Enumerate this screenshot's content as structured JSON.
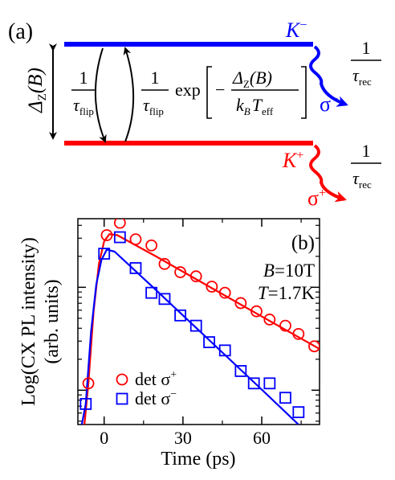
{
  "panel_a": {
    "label": "(a)",
    "upper_level": {
      "label": "K",
      "sup": "−",
      "color": "#0000ff"
    },
    "lower_level": {
      "label": "K",
      "sup": "+",
      "color": "#ff0000"
    },
    "splitting": {
      "main": "Δ",
      "sub": "Z",
      "arg": "(B)"
    },
    "rate_down": {
      "num": "1",
      "den_main": "τ",
      "den_sub": "flip"
    },
    "rate_up": {
      "num": "1",
      "den_main": "τ",
      "den_sub": "flip",
      "exp": "exp",
      "inner_num_main": "Δ",
      "inner_num_sub": "Z",
      "inner_num_arg": "(B)",
      "inner_den_kb": "k",
      "inner_den_kb_sub": "B",
      "inner_den_t": "T",
      "inner_den_t_sub": "eff",
      "minus": "−"
    },
    "upper_emission": {
      "pol": "σ",
      "pol_sup": "−",
      "color": "#0000ff",
      "rate_num": "1",
      "rate_den_main": "τ",
      "rate_den_sub": "rec"
    },
    "lower_emission": {
      "pol": "σ",
      "pol_sup": "+",
      "color": "#ff0000",
      "rate_num": "1",
      "rate_den_main": "τ",
      "rate_den_sub": "rec"
    }
  },
  "chart_data": {
    "type": "scatter",
    "panel_label": "(b)",
    "xlabel": "Time (ps)",
    "ylabel": "Log(CX PL intensity)",
    "ylabel2": "(arb. units)",
    "x_ticks": [
      0,
      30,
      60
    ],
    "xlim": [
      -10,
      82
    ],
    "ylim": [
      0,
      1
    ],
    "log_scale": true,
    "annotations": [
      {
        "main": "B",
        "rest": "=10T"
      },
      {
        "main": "T",
        "rest": "=1.7K"
      }
    ],
    "series": [
      {
        "name": "det σ",
        "name_sup": "+",
        "color": "#ff0000",
        "marker": "circle",
        "points": [
          [
            -6,
            0.2
          ],
          [
            1,
            0.92
          ],
          [
            6,
            0.98
          ],
          [
            12,
            0.9
          ],
          [
            18,
            0.87
          ],
          [
            23,
            0.78
          ],
          [
            29,
            0.74
          ],
          [
            35,
            0.72
          ],
          [
            41,
            0.67
          ],
          [
            46,
            0.64
          ],
          [
            52,
            0.59
          ],
          [
            58,
            0.55
          ],
          [
            63,
            0.51
          ],
          [
            69,
            0.48
          ],
          [
            74,
            0.44
          ],
          [
            80,
            0.38
          ]
        ],
        "fit": [
          [
            -7.5,
            0.0
          ],
          [
            -6,
            0.2
          ],
          [
            -4,
            0.55
          ],
          [
            -2,
            0.78
          ],
          [
            0,
            0.89
          ],
          [
            2,
            0.925
          ],
          [
            5,
            0.92
          ],
          [
            20,
            0.815
          ],
          [
            40,
            0.67
          ],
          [
            60,
            0.525
          ],
          [
            83,
            0.36
          ]
        ]
      },
      {
        "name": "det σ",
        "name_sup": "−",
        "color": "#0000ff",
        "marker": "square",
        "points": [
          [
            -7,
            0.1
          ],
          [
            0,
            0.83
          ],
          [
            6,
            0.91
          ],
          [
            12,
            0.76
          ],
          [
            18,
            0.64
          ],
          [
            23,
            0.61
          ],
          [
            29,
            0.53
          ],
          [
            35,
            0.48
          ],
          [
            40,
            0.4
          ],
          [
            46,
            0.36
          ],
          [
            52,
            0.26
          ],
          [
            57,
            0.2
          ],
          [
            63,
            0.2
          ],
          [
            69,
            0.13
          ],
          [
            74,
            0.06
          ]
        ],
        "fit": [
          [
            -8.5,
            0.0
          ],
          [
            -7,
            0.1
          ],
          [
            -5,
            0.45
          ],
          [
            -3,
            0.68
          ],
          [
            -1,
            0.8
          ],
          [
            1,
            0.85
          ],
          [
            4,
            0.84
          ],
          [
            20,
            0.65
          ],
          [
            40,
            0.41
          ],
          [
            60,
            0.17
          ],
          [
            74,
            0.0
          ]
        ]
      }
    ]
  }
}
